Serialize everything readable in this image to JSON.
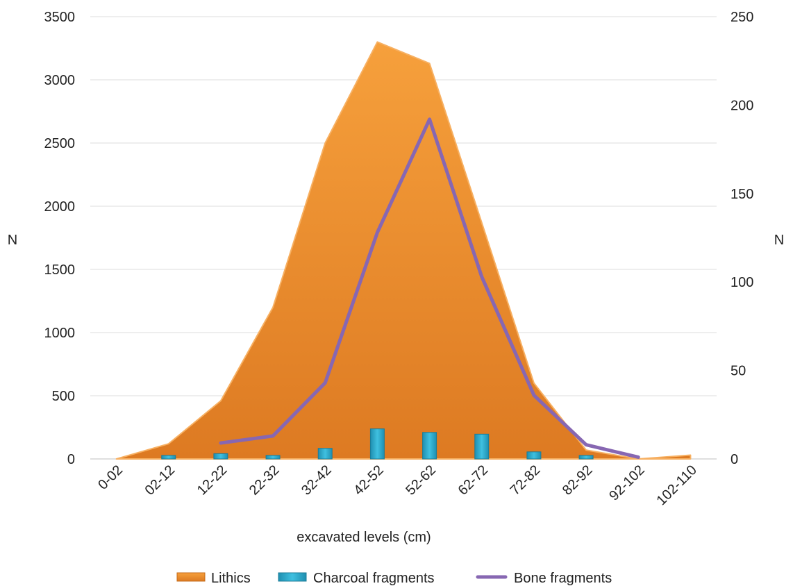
{
  "chart_data": {
    "type": "area",
    "xlabel": "excavated levels (cm)",
    "ylabel_left": "N",
    "ylabel_right": "N",
    "ylim_left": [
      0,
      3500
    ],
    "ylim_right": [
      0,
      250
    ],
    "yticks_left": [
      "0",
      "500",
      "1000",
      "1500",
      "2000",
      "2500",
      "3000",
      "3500"
    ],
    "yticks_right": [
      "0",
      "50",
      "100",
      "150",
      "200",
      "250"
    ],
    "categories": [
      "0-02",
      "02-12",
      "12-22",
      "22-32",
      "32-42",
      "42-52",
      "52-62",
      "62-72",
      "72-82",
      "82-92",
      "92-102",
      "102-110"
    ],
    "grid": true,
    "legend_position": "bottom",
    "series": [
      {
        "name": "Lithics",
        "type": "area",
        "axis": "left",
        "color": "#f28a24",
        "values": [
          0,
          120,
          460,
          1200,
          2500,
          3300,
          3130,
          1870,
          600,
          70,
          0,
          30
        ]
      },
      {
        "name": "Charcoal fragments",
        "type": "bar",
        "axis": "right",
        "color": "#2aa7c9",
        "values": [
          0,
          2,
          3,
          2,
          6,
          17,
          15,
          14,
          4,
          2,
          0,
          0
        ]
      },
      {
        "name": "Bone fragments",
        "type": "line",
        "axis": "right",
        "color": "#8767b2",
        "values": [
          null,
          null,
          9,
          13,
          43,
          128,
          192,
          103,
          36,
          8,
          1,
          null
        ]
      }
    ]
  }
}
